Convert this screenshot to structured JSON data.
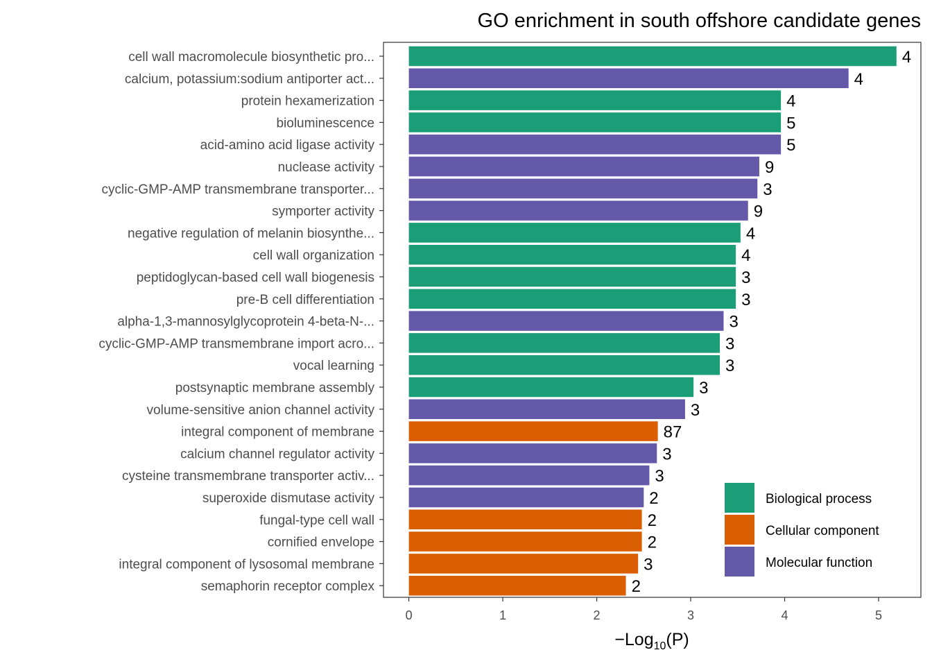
{
  "chart_data": {
    "type": "bar",
    "orientation": "horizontal",
    "title": "GO enrichment in south offshore candidate genes",
    "xlabel": {
      "prefix": "−Log",
      "subscript": "10",
      "suffix": "(P)"
    },
    "xlim": [
      -0.27,
      5.45
    ],
    "xticks": [
      0,
      1,
      2,
      3,
      4,
      5
    ],
    "grid": false,
    "legend_position": "bottom-right",
    "colors": {
      "Biological process": "#1b9e77",
      "Cellular component": "#d95f02",
      "Molecular function": "#6459a8"
    },
    "legend": [
      "Biological process",
      "Cellular component",
      "Molecular function"
    ],
    "bars": [
      {
        "label": "cell wall macromolecule biosynthetic pro...",
        "value": 5.19,
        "count": "4",
        "category": "Biological process"
      },
      {
        "label": "calcium, potassium:sodium antiporter act...",
        "value": 4.68,
        "count": "4",
        "category": "Molecular function"
      },
      {
        "label": "protein hexamerization",
        "value": 3.96,
        "count": "4",
        "category": "Biological process"
      },
      {
        "label": "bioluminescence",
        "value": 3.96,
        "count": "5",
        "category": "Biological process"
      },
      {
        "label": "acid-amino acid ligase activity",
        "value": 3.96,
        "count": "5",
        "category": "Molecular function"
      },
      {
        "label": "nuclease activity",
        "value": 3.73,
        "count": "9",
        "category": "Molecular function"
      },
      {
        "label": "cyclic-GMP-AMP transmembrane transporter...",
        "value": 3.71,
        "count": "3",
        "category": "Molecular function"
      },
      {
        "label": "symporter activity",
        "value": 3.61,
        "count": "9",
        "category": "Molecular function"
      },
      {
        "label": "negative regulation of melanin biosynthe...",
        "value": 3.53,
        "count": "4",
        "category": "Biological process"
      },
      {
        "label": "cell wall organization",
        "value": 3.48,
        "count": "4",
        "category": "Biological process"
      },
      {
        "label": "peptidoglycan-based cell wall biogenesis",
        "value": 3.48,
        "count": "3",
        "category": "Biological process"
      },
      {
        "label": "pre-B cell differentiation",
        "value": 3.48,
        "count": "3",
        "category": "Biological process"
      },
      {
        "label": "alpha-1,3-mannosylglycoprotein 4-beta-N-...",
        "value": 3.35,
        "count": "3",
        "category": "Molecular function"
      },
      {
        "label": "cyclic-GMP-AMP transmembrane import acro...",
        "value": 3.31,
        "count": "3",
        "category": "Biological process"
      },
      {
        "label": "vocal learning",
        "value": 3.31,
        "count": "3",
        "category": "Biological process"
      },
      {
        "label": "postsynaptic membrane assembly",
        "value": 3.03,
        "count": "3",
        "category": "Biological process"
      },
      {
        "label": "volume-sensitive anion channel activity",
        "value": 2.94,
        "count": "3",
        "category": "Molecular function"
      },
      {
        "label": "integral component of membrane",
        "value": 2.65,
        "count": "87",
        "category": "Cellular component"
      },
      {
        "label": "calcium channel regulator activity",
        "value": 2.64,
        "count": "3",
        "category": "Molecular function"
      },
      {
        "label": "cysteine transmembrane transporter activ...",
        "value": 2.56,
        "count": "3",
        "category": "Molecular function"
      },
      {
        "label": "superoxide dismutase activity",
        "value": 2.5,
        "count": "2",
        "category": "Molecular function"
      },
      {
        "label": "fungal-type cell wall",
        "value": 2.48,
        "count": "2",
        "category": "Cellular component"
      },
      {
        "label": "cornified envelope",
        "value": 2.48,
        "count": "2",
        "category": "Cellular component"
      },
      {
        "label": "integral component of lysosomal membrane",
        "value": 2.44,
        "count": "3",
        "category": "Cellular component"
      },
      {
        "label": "semaphorin receptor complex",
        "value": 2.31,
        "count": "2",
        "category": "Cellular component"
      }
    ]
  }
}
